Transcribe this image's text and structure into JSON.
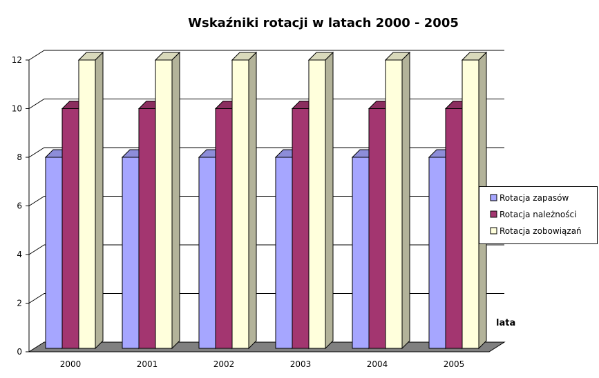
{
  "chart_data": {
    "type": "bar",
    "title": "Wskaźniki rotacji w latach 2000 - 2005",
    "xlabel": "lata",
    "ylabel": "",
    "ylim": [
      0,
      12
    ],
    "yticks": [
      "0",
      "2",
      "4",
      "6",
      "8",
      "10",
      "12"
    ],
    "grid": true,
    "legend_position": "right",
    "categories": [
      "2000",
      "2001",
      "2002",
      "2003",
      "2004",
      "2005"
    ],
    "series": [
      {
        "name": "Rotacja zapasów",
        "color": "#a6a6ff",
        "values": [
          8,
          8,
          8,
          8,
          8,
          8
        ]
      },
      {
        "name": "Rotacja należności",
        "color": "#a33670",
        "values": [
          10,
          10,
          10,
          10,
          10,
          10
        ]
      },
      {
        "name": "Rotacja zobowiązań",
        "color": "#ffffdc",
        "values": [
          12,
          12,
          12,
          12,
          12,
          12
        ]
      }
    ]
  }
}
